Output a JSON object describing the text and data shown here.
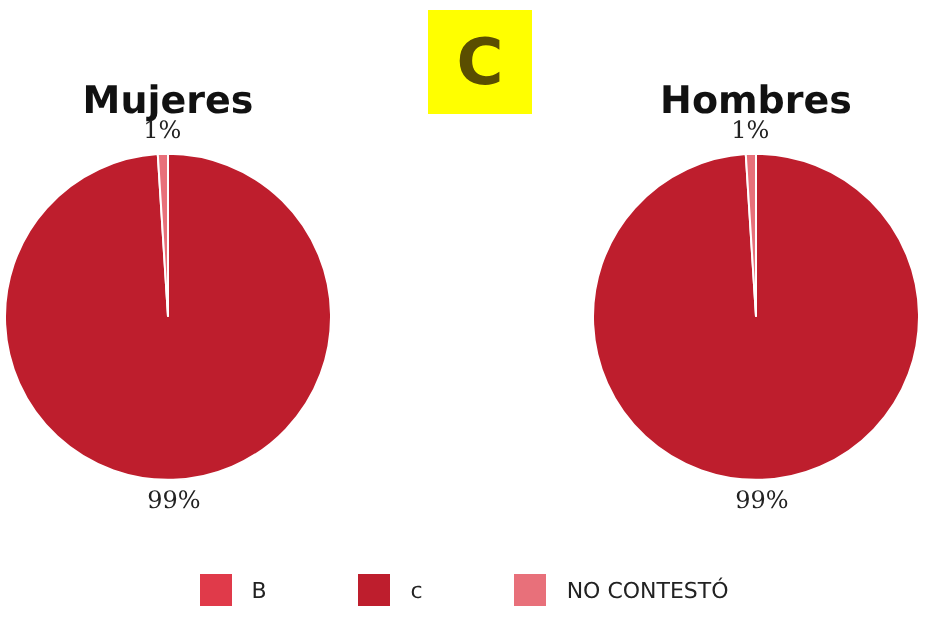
{
  "chart_data": {
    "type": "pie",
    "title": "C",
    "categories": [
      "B",
      "c",
      "NO CONTESTÓ"
    ],
    "colors": [
      "#e03a4a",
      "#be1e2d",
      "#e8707a"
    ],
    "legend": "bottom",
    "series": [
      {
        "name": "Mujeres",
        "values": [
          0,
          99,
          1
        ],
        "value_labels": [
          null,
          "99%",
          "1%"
        ]
      },
      {
        "name": "Hombres",
        "values": [
          0,
          99,
          1
        ],
        "value_labels": [
          null,
          "99%",
          "1%"
        ]
      }
    ]
  }
}
